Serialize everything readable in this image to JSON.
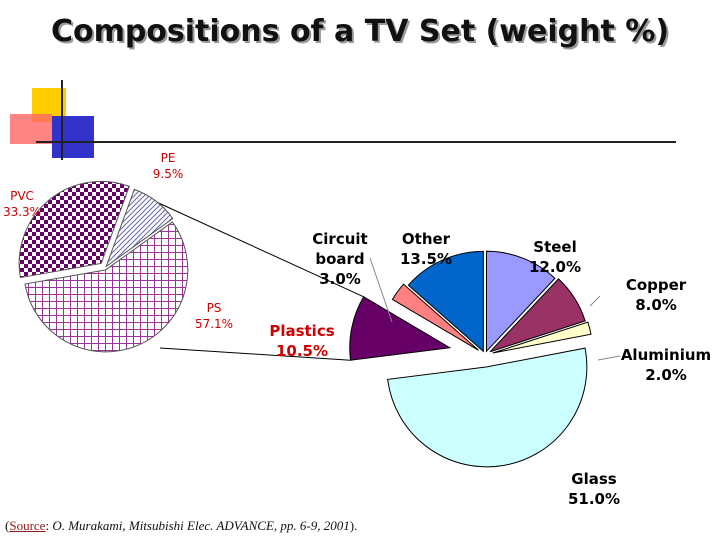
{
  "title": "Compositions of a TV Set (weight %)",
  "source": {
    "open": "(",
    "label": "Source",
    "colon": ": ",
    "citation": "O. Murakami, Mitsubishi Elec. ADVANCE, pp. 6-9, 2001",
    "close": ")."
  },
  "chart_data": [
    {
      "type": "pie",
      "slices": [
        {
          "label_lines": [
            "Steel",
            "12.0%"
          ],
          "name": "Steel",
          "value": 12.0,
          "color": "#9999ff"
        },
        {
          "label_lines": [
            "Copper",
            "8.0%"
          ],
          "name": "Copper",
          "value": 8.0,
          "color": "#993366"
        },
        {
          "label_lines": [
            "Aluminium",
            "2.0%"
          ],
          "name": "Aluminium",
          "value": 2.0,
          "color": "#ffffcc"
        },
        {
          "label_lines": [
            "Glass",
            "51.0%"
          ],
          "name": "Glass",
          "value": 51.0,
          "color": "#ccffff"
        },
        {
          "label_lines": [
            "Plastics",
            "10.5%"
          ],
          "name": "Plastics",
          "value": 10.5,
          "color": "#660066"
        },
        {
          "label_lines": [
            "Circuit",
            "board",
            "3.0%"
          ],
          "name": "Circuit board",
          "value": 3.0,
          "color": "#ff8080"
        },
        {
          "label_lines": [
            "Other",
            "13.5%"
          ],
          "name": "Other",
          "value": 13.5,
          "color": "#0066cc"
        }
      ]
    },
    {
      "type": "pie",
      "parent_slice": "Plastics",
      "slices": [
        {
          "label_lines": [
            "PE",
            "9.5%"
          ],
          "name": "PE",
          "value": 9.5,
          "color": "#9999cc",
          "pattern": "diagonal"
        },
        {
          "label_lines": [
            "PS",
            "57.1%"
          ],
          "name": "PS",
          "value": 57.1,
          "color": "#993399",
          "pattern": "grid"
        },
        {
          "label_lines": [
            "PVC",
            "33.3%"
          ],
          "name": "PVC",
          "value": 33.3,
          "color": "#660066",
          "pattern": "checker"
        }
      ]
    }
  ],
  "colors": {
    "label_main": "#000000",
    "label_highlight": "#cc0000",
    "label_sub": "#cc0000"
  }
}
